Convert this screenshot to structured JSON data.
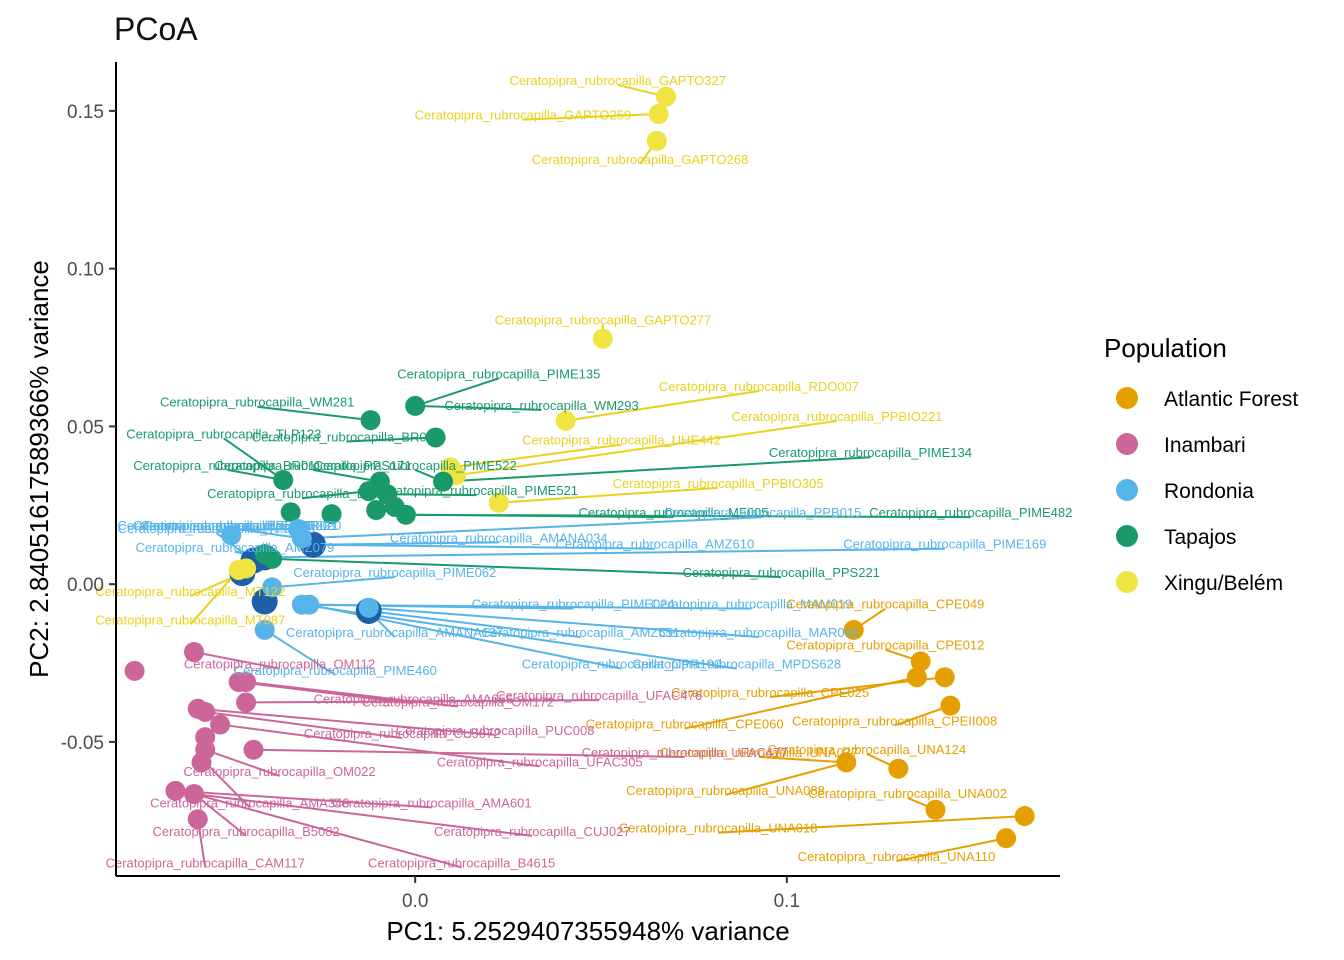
{
  "chart_data": {
    "type": "scatter",
    "title": "PCoA",
    "xlabel": "PC1: 5.2529407355948% variance",
    "ylabel": "PC2: 2.84051617589366% variance",
    "xlim": [
      -0.0805,
      0.1735
    ],
    "ylim": [
      -0.0925,
      0.1655
    ],
    "x_ticks": [
      {
        "value": 0.0,
        "label": "0.0"
      },
      {
        "value": 0.1,
        "label": "0.1"
      }
    ],
    "y_ticks": [
      {
        "value": 0.15,
        "label": "0.15"
      },
      {
        "value": 0.1,
        "label": "0.10"
      },
      {
        "value": 0.05,
        "label": "0.05"
      },
      {
        "value": 0.0,
        "label": "0.00"
      },
      {
        "value": -0.05,
        "label": "-0.05"
      }
    ],
    "grid": false,
    "legend": {
      "title": "Population",
      "position": "right",
      "entries": [
        {
          "name": "Atlantic Forest",
          "color": "#E69F00"
        },
        {
          "name": "Inambari",
          "color": "#CC6699"
        },
        {
          "name": "Rondonia",
          "color": "#56B4E9"
        },
        {
          "name": "Tapajos",
          "color": "#1A9A6B"
        },
        {
          "name": "Xingu/Belém",
          "color": "#F0E442"
        }
      ]
    },
    "highlight_color": "#1F5FA8",
    "highlighted_points": [
      {
        "x": -0.0465,
        "y": 0.0035
      },
      {
        "x": -0.0435,
        "y": 0.0075
      },
      {
        "x": -0.0405,
        "y": 0.0085
      },
      {
        "x": -0.0275,
        "y": 0.0125
      },
      {
        "x": -0.0405,
        "y": -0.0055
      },
      {
        "x": -0.0125,
        "y": -0.0085
      }
    ],
    "points": [
      {
        "series": "Xingu/Belém",
        "x": 0.0675,
        "y": 0.1545
      },
      {
        "series": "Xingu/Belém",
        "x": 0.0655,
        "y": 0.149
      },
      {
        "series": "Xingu/Belém",
        "x": 0.065,
        "y": 0.1405
      },
      {
        "series": "Xingu/Belém",
        "x": 0.0505,
        "y": 0.0778
      },
      {
        "series": "Xingu/Belém",
        "x": 0.0405,
        "y": 0.0518
      },
      {
        "series": "Xingu/Belém",
        "x": 0.0225,
        "y": 0.0258
      },
      {
        "series": "Xingu/Belém",
        "x": 0.011,
        "y": 0.0345
      },
      {
        "series": "Xingu/Belém",
        "x": 0.0095,
        "y": 0.037
      },
      {
        "series": "Xingu/Belém",
        "x": -0.0475,
        "y": 0.0045
      },
      {
        "series": "Xingu/Belém",
        "x": -0.0455,
        "y": 0.005
      },
      {
        "series": "Tapajos",
        "x": -0.012,
        "y": 0.052
      },
      {
        "series": "Tapajos",
        "x": 0.0,
        "y": 0.0565
      },
      {
        "series": "Tapajos",
        "x": 0.0055,
        "y": 0.0465
      },
      {
        "series": "Tapajos",
        "x": 0.0075,
        "y": 0.0325
      },
      {
        "series": "Tapajos",
        "x": -0.0355,
        "y": 0.033
      },
      {
        "series": "Tapajos",
        "x": -0.0125,
        "y": 0.0295
      },
      {
        "series": "Tapajos",
        "x": -0.0095,
        "y": 0.0325
      },
      {
        "series": "Tapajos",
        "x": -0.0075,
        "y": 0.0285
      },
      {
        "series": "Tapajos",
        "x": -0.0055,
        "y": 0.0245
      },
      {
        "series": "Tapajos",
        "x": -0.0105,
        "y": 0.0235
      },
      {
        "series": "Tapajos",
        "x": -0.0025,
        "y": 0.022
      },
      {
        "series": "Tapajos",
        "x": -0.0335,
        "y": 0.0228
      },
      {
        "series": "Tapajos",
        "x": -0.0225,
        "y": 0.0222
      },
      {
        "series": "Tapajos",
        "x": -0.0405,
        "y": 0.0095
      },
      {
        "series": "Tapajos",
        "x": -0.0385,
        "y": 0.008
      },
      {
        "series": "Rondonia",
        "x": -0.0495,
        "y": 0.0155
      },
      {
        "series": "Rondonia",
        "x": -0.0315,
        "y": 0.0175
      },
      {
        "series": "Rondonia",
        "x": -0.0305,
        "y": 0.0145
      },
      {
        "series": "Rondonia",
        "x": -0.0385,
        "y": -0.001
      },
      {
        "series": "Rondonia",
        "x": -0.0305,
        "y": -0.0065
      },
      {
        "series": "Rondonia",
        "x": -0.0285,
        "y": -0.0065
      },
      {
        "series": "Rondonia",
        "x": -0.0405,
        "y": -0.0145
      },
      {
        "series": "Rondonia",
        "x": -0.0125,
        "y": -0.0075
      },
      {
        "series": "Atlantic Forest",
        "x": 0.118,
        "y": -0.0145
      },
      {
        "series": "Atlantic Forest",
        "x": 0.136,
        "y": -0.0245
      },
      {
        "series": "Atlantic Forest",
        "x": 0.135,
        "y": -0.0295
      },
      {
        "series": "Atlantic Forest",
        "x": 0.1425,
        "y": -0.0295
      },
      {
        "series": "Atlantic Forest",
        "x": 0.144,
        "y": -0.0385
      },
      {
        "series": "Atlantic Forest",
        "x": 0.116,
        "y": -0.0565
      },
      {
        "series": "Atlantic Forest",
        "x": 0.13,
        "y": -0.0585
      },
      {
        "series": "Atlantic Forest",
        "x": 0.14,
        "y": -0.0715
      },
      {
        "series": "Atlantic Forest",
        "x": 0.164,
        "y": -0.0735
      },
      {
        "series": "Atlantic Forest",
        "x": 0.159,
        "y": -0.0805
      },
      {
        "series": "Inambari",
        "x": -0.0755,
        "y": -0.0275
      },
      {
        "series": "Inambari",
        "x": -0.0595,
        "y": -0.0215
      },
      {
        "series": "Inambari",
        "x": -0.0475,
        "y": -0.031
      },
      {
        "series": "Inambari",
        "x": -0.0455,
        "y": -0.031
      },
      {
        "series": "Inambari",
        "x": -0.0455,
        "y": -0.0375
      },
      {
        "series": "Inambari",
        "x": -0.0585,
        "y": -0.0395
      },
      {
        "series": "Inambari",
        "x": -0.0565,
        "y": -0.0405
      },
      {
        "series": "Inambari",
        "x": -0.0525,
        "y": -0.0445
      },
      {
        "series": "Inambari",
        "x": -0.0565,
        "y": -0.0485
      },
      {
        "series": "Inambari",
        "x": -0.0565,
        "y": -0.0525
      },
      {
        "series": "Inambari",
        "x": -0.0435,
        "y": -0.0525
      },
      {
        "series": "Inambari",
        "x": -0.0575,
        "y": -0.0565
      },
      {
        "series": "Inambari",
        "x": -0.0645,
        "y": -0.0655
      },
      {
        "series": "Inambari",
        "x": -0.0595,
        "y": -0.0665
      },
      {
        "series": "Inambari",
        "x": -0.0585,
        "y": -0.0745
      }
    ],
    "labels": [
      {
        "text": "Ceratopipra_rubrocapilla_GAPTO327",
        "series": "Xingu/Belém",
        "x": 0.0545,
        "y": 0.1595,
        "px": 0.0675,
        "py": 0.1545
      },
      {
        "text": "Ceratopipra_rubrocapilla_GAPTO259",
        "series": "Xingu/Belém",
        "x": 0.029,
        "y": 0.1485,
        "px": 0.0655,
        "py": 0.149
      },
      {
        "text": "Ceratopipra_rubrocapilla_GAPTO268",
        "series": "Xingu/Belém",
        "x": 0.0605,
        "y": 0.1345,
        "px": 0.065,
        "py": 0.1405
      },
      {
        "text": "Ceratopipra_rubrocapilla_GAPTO277",
        "series": "Xingu/Belém",
        "x": 0.0505,
        "y": 0.0835,
        "px": 0.0505,
        "py": 0.0778
      },
      {
        "text": "Ceratopipra_rubrocapilla_RDO007",
        "series": "Xingu/Belém",
        "x": 0.0925,
        "y": 0.0625,
        "px": 0.0405,
        "py": 0.0518
      },
      {
        "text": "Ceratopipra_rubrocapilla_PPBIO221",
        "series": "Xingu/Belém",
        "x": 0.1135,
        "y": 0.053,
        "px": 0.011,
        "py": 0.0345
      },
      {
        "text": "Ceratopipra_rubrocapilla_UHE442",
        "series": "Xingu/Belém",
        "x": 0.0555,
        "y": 0.0455,
        "px": 0.0095,
        "py": 0.037
      },
      {
        "text": "Ceratopipra_rubrocapilla_PPBIO305",
        "series": "Xingu/Belém",
        "x": 0.0815,
        "y": 0.0318,
        "px": 0.0225,
        "py": 0.0258
      },
      {
        "text": "Ceratopipra_rubrocapilla_MT122",
        "series": "Xingu/Belém",
        "x": -0.0605,
        "y": -0.0025,
        "px": -0.0465,
        "py": 0.0035
      },
      {
        "text": "Ceratopipra_rubrocapilla_MT087",
        "series": "Xingu/Belém",
        "x": -0.0605,
        "y": -0.0115,
        "px": -0.0475,
        "py": 0.0045
      },
      {
        "text": "Ceratopipra_rubrocapilla_PIME135",
        "series": "Tapajos",
        "x": 0.0225,
        "y": 0.0665,
        "px": 0.0,
        "py": 0.0565
      },
      {
        "text": "Ceratopipra_rubrocapilla_WM281",
        "series": "Tapajos",
        "x": -0.0425,
        "y": 0.0575,
        "px": -0.012,
        "py": 0.052
      },
      {
        "text": "Ceratopipra_rubrocapilla_WM293",
        "series": "Tapajos",
        "x": 0.034,
        "y": 0.0565,
        "px": 0.0,
        "py": 0.0565
      },
      {
        "text": "Ceratopipra_rubrocapilla_TLP123",
        "series": "Tapajos",
        "x": -0.0515,
        "y": 0.0475,
        "px": -0.0355,
        "py": 0.033
      },
      {
        "text": "Ceratopipra_rubrocapilla_BR033",
        "series": "Tapajos",
        "x": -0.0185,
        "y": 0.0465,
        "px": 0.0055,
        "py": 0.0465
      },
      {
        "text": "Ceratopipra_rubrocapilla_PIME134",
        "series": "Tapajos",
        "x": 0.1225,
        "y": 0.0415,
        "px": 0.0075,
        "py": 0.0325
      },
      {
        "text": "Ceratopipra_rubrocapilla_PIME522",
        "series": "Tapajos",
        "x": 0.0,
        "y": 0.0375,
        "px": 0.0075,
        "py": 0.0325
      },
      {
        "text": "Ceratopipra_rubrocapilla_PPS171",
        "series": "Tapajos",
        "x": -0.0275,
        "y": 0.0375,
        "px": -0.0095,
        "py": 0.0325
      },
      {
        "text": "Ceratopipra_rubrocapilla_BR011",
        "series": "Tapajos",
        "x": -0.0505,
        "y": 0.0375,
        "px": -0.0355,
        "py": 0.033
      },
      {
        "text": "Ceratopipra_rubrocapilla_PIME521",
        "series": "Tapajos",
        "x": 0.0165,
        "y": 0.0295,
        "px": -0.0075,
        "py": 0.0285
      },
      {
        "text": "Ceratopipra_rubrocapilla_BR038",
        "series": "Tapajos",
        "x": -0.0305,
        "y": 0.0285,
        "px": -0.0125,
        "py": 0.0295
      },
      {
        "text": "Ceratopipra_rubrocapilla_MF005",
        "series": "Tapajos",
        "x": 0.0695,
        "y": 0.0225,
        "px": -0.0025,
        "py": 0.022
      },
      {
        "text": "Ceratopipra_rubrocapilla_PIME482",
        "series": "Tapajos",
        "x": 0.1495,
        "y": 0.0225,
        "px": -0.0025,
        "py": 0.022
      },
      {
        "text": "Ceratopipra_rubrocapilla_PPS221",
        "series": "Tapajos",
        "x": 0.0985,
        "y": 0.0035,
        "px": -0.0385,
        "py": 0.008
      },
      {
        "text": "Ceratopipra_rubrocapilla_PPR021",
        "series": "Rondonia",
        "x": -0.0535,
        "y": 0.0185,
        "px": -0.0495,
        "py": 0.0155
      },
      {
        "text": "Ceratopipra_rubrocapilla_TPR021",
        "series": "Rondonia",
        "x": -0.0475,
        "y": 0.0185,
        "px": -0.0315,
        "py": 0.0175
      },
      {
        "text": "Ceratopipra_rubrocapilla_TPR020",
        "series": "Rondonia",
        "x": -0.0495,
        "y": 0.0185,
        "px": -0.0315,
        "py": 0.0175
      },
      {
        "text": "Ceratopipra_rubrocapilla_PPR020",
        "series": "Rondonia",
        "x": -0.0465,
        "y": 0.0185,
        "px": -0.0305,
        "py": 0.0145
      },
      {
        "text": "Ceratopipra_rubrocapilla_PPB015",
        "series": "Rondonia",
        "x": 0.0935,
        "y": 0.0225,
        "px": -0.0305,
        "py": 0.0145
      },
      {
        "text": "Ceratopipra_rubrocapilla_AMANA034",
        "series": "Rondonia",
        "x": 0.0225,
        "y": 0.0145,
        "px": -0.0275,
        "py": 0.0125
      },
      {
        "text": "Ceratopipra_rubrocapilla_AMZ610",
        "series": "Rondonia",
        "x": 0.0645,
        "y": 0.0125,
        "px": -0.0275,
        "py": 0.0125
      },
      {
        "text": "Ceratopipra_rubrocapilla_PIME169",
        "series": "Rondonia",
        "x": 0.1425,
        "y": 0.0125,
        "px": -0.0405,
        "py": 0.0085
      },
      {
        "text": "Ceratopipra_rubrocapilla_AMZ079",
        "series": "Rondonia",
        "x": -0.0485,
        "y": 0.0115,
        "px": -0.0405,
        "py": 0.0085
      },
      {
        "text": "Ceratopipra_rubrocapilla_TPR026",
        "series": "Rondonia",
        "x": -0.0535,
        "y": 0.0175,
        "px": -0.0435,
        "py": 0.0075
      },
      {
        "text": "Ceratopipra_rubrocapilla_PIME062",
        "series": "Rondonia",
        "x": -0.0055,
        "y": 0.0035,
        "px": -0.0385,
        "py": -0.001
      },
      {
        "text": "Ceratopipra_rubrocapilla_PIME024",
        "series": "Rondonia",
        "x": 0.0425,
        "y": -0.0065,
        "px": -0.0305,
        "py": -0.0065
      },
      {
        "text": "Ceratopipra_rubrocapilla_MAM019",
        "series": "Rondonia",
        "x": 0.0905,
        "y": -0.0065,
        "px": -0.0285,
        "py": -0.0065
      },
      {
        "text": "Ceratopipra_rubrocapilla_AMANA137",
        "series": "Rondonia",
        "x": -0.0055,
        "y": -0.0155,
        "px": -0.0125,
        "py": -0.0085
      },
      {
        "text": "Ceratopipra_rubrocapilla_AMZ551",
        "series": "Rondonia",
        "x": 0.0445,
        "y": -0.0155,
        "px": -0.0125,
        "py": -0.0085
      },
      {
        "text": "Ceratopipra_rubrocapilla_MAR092",
        "series": "Rondonia",
        "x": 0.0925,
        "y": -0.0155,
        "px": -0.0125,
        "py": -0.0075
      },
      {
        "text": "Ceratopipra_rubrocapilla_OPR190",
        "series": "Rondonia",
        "x": 0.0555,
        "y": -0.0255,
        "px": -0.0285,
        "py": -0.0065
      },
      {
        "text": "Ceratopipra_rubrocapilla_MPDS628",
        "series": "Rondonia",
        "x": 0.0865,
        "y": -0.0255,
        "px": -0.0305,
        "py": -0.0065
      },
      {
        "text": "Ceratopipra_rubrocapilla_PIME460",
        "series": "Rondonia",
        "x": -0.0215,
        "y": -0.0275,
        "px": -0.0405,
        "py": -0.0145
      },
      {
        "text": "Ceratopipra_rubrocapilla_CPE049",
        "series": "Atlantic Forest",
        "x": 0.1265,
        "y": -0.0065,
        "px": 0.118,
        "py": -0.0145
      },
      {
        "text": "Ceratopipra_rubrocapilla_CPE012",
        "series": "Atlantic Forest",
        "x": 0.1265,
        "y": -0.0195,
        "px": 0.136,
        "py": -0.0245
      },
      {
        "text": "Ceratopipra_rubrocapilla_CPE025",
        "series": "Atlantic Forest",
        "x": 0.0955,
        "y": -0.0345,
        "px": 0.1425,
        "py": -0.0295
      },
      {
        "text": "Ceratopipra_rubrocapilla_CPEII008",
        "series": "Atlantic Forest",
        "x": 0.129,
        "y": -0.0435,
        "px": 0.144,
        "py": -0.0385
      },
      {
        "text": "Ceratopipra_rubrocapilla_CPE060",
        "series": "Atlantic Forest",
        "x": 0.0725,
        "y": -0.0445,
        "px": 0.135,
        "py": -0.0295
      },
      {
        "text": "Ceratopipra_rubrocapilla_UNA124",
        "series": "Atlantic Forest",
        "x": 0.1215,
        "y": -0.0525,
        "px": 0.13,
        "py": -0.0585
      },
      {
        "text": "Ceratopipra_rubrocapilla_UNA037",
        "series": "Atlantic Forest",
        "x": 0.0925,
        "y": -0.0535,
        "px": 0.116,
        "py": -0.0565
      },
      {
        "text": "Ceratopipra_rubrocapilla_UNA088",
        "series": "Atlantic Forest",
        "x": 0.0835,
        "y": -0.0655,
        "px": 0.116,
        "py": -0.0565
      },
      {
        "text": "Ceratopipra_rubrocapilla_UNA002",
        "series": "Atlantic Forest",
        "x": 0.1325,
        "y": -0.0665,
        "px": 0.14,
        "py": -0.0715
      },
      {
        "text": "Ceratopipra_rubrocapilla_UNA018",
        "series": "Atlantic Forest",
        "x": 0.0815,
        "y": -0.0775,
        "px": 0.164,
        "py": -0.0735
      },
      {
        "text": "Ceratopipra_rubrocapilla_UNA110",
        "series": "Atlantic Forest",
        "x": 0.1295,
        "y": -0.0865,
        "px": 0.159,
        "py": -0.0805
      },
      {
        "text": "Ceratopipra_rubrocapilla_OM112",
        "series": "Inambari",
        "x": -0.0365,
        "y": -0.0255,
        "px": -0.0595,
        "py": -0.0215
      },
      {
        "text": "Ceratopipra_rubrocapilla_AMA656",
        "series": "Inambari",
        "x": -0.0005,
        "y": -0.0365,
        "px": -0.0475,
        "py": -0.031
      },
      {
        "text": "Ceratopipra_rubrocapilla_OM172",
        "series": "Inambari",
        "x": 0.0115,
        "y": -0.0375,
        "px": -0.0455,
        "py": -0.031
      },
      {
        "text": "Ceratopipra_rubrocapilla_UFAC476",
        "series": "Inambari",
        "x": 0.0495,
        "y": -0.0355,
        "px": -0.0455,
        "py": -0.0375
      },
      {
        "text": "Ceratopipra_rubrocapilla_PUC008",
        "series": "Inambari",
        "x": 0.0215,
        "y": -0.0465,
        "px": -0.0585,
        "py": -0.0395
      },
      {
        "text": "Ceratopipra_rubrocapilla_CUJ072",
        "series": "Inambari",
        "x": -0.0035,
        "y": -0.0475,
        "px": -0.0565,
        "py": -0.0405
      },
      {
        "text": "Ceratopipra_rubrocapilla_UFAC305",
        "series": "Inambari",
        "x": 0.0335,
        "y": -0.0565,
        "px": -0.0525,
        "py": -0.0445
      },
      {
        "text": "Ceratopipra_rubrocapilla_UFAC477",
        "series": "Inambari",
        "x": 0.0725,
        "y": -0.0535,
        "px": -0.0435,
        "py": -0.0525
      },
      {
        "text": "Ceratopipra_rubrocapilla_OM022",
        "series": "Inambari",
        "x": -0.0365,
        "y": -0.0595,
        "px": -0.0565,
        "py": -0.0525
      },
      {
        "text": "Ceratopipra_rubrocapilla_AMA340",
        "series": "Inambari",
        "x": -0.0445,
        "y": -0.0695,
        "px": -0.0565,
        "py": -0.0565
      },
      {
        "text": "Ceratopipra_rubrocapilla_AMA601",
        "series": "Inambari",
        "x": 0.0045,
        "y": -0.0695,
        "px": -0.0645,
        "py": -0.0655
      },
      {
        "text": "Ceratopipra_rubrocapilla_B5082",
        "series": "Inambari",
        "x": -0.0455,
        "y": -0.0785,
        "px": -0.0595,
        "py": -0.0665
      },
      {
        "text": "Ceratopipra_rubrocapilla_CUJ027",
        "series": "Inambari",
        "x": 0.0315,
        "y": -0.0785,
        "px": -0.0595,
        "py": -0.0665
      },
      {
        "text": "Ceratopipra_rubrocapilla_CAM117",
        "series": "Inambari",
        "x": -0.0565,
        "y": -0.0885,
        "px": -0.0585,
        "py": -0.0745
      },
      {
        "text": "Ceratopipra_rubrocapilla_B4615",
        "series": "Inambari",
        "x": 0.0125,
        "y": -0.0885,
        "px": -0.0595,
        "py": -0.0665
      }
    ]
  }
}
